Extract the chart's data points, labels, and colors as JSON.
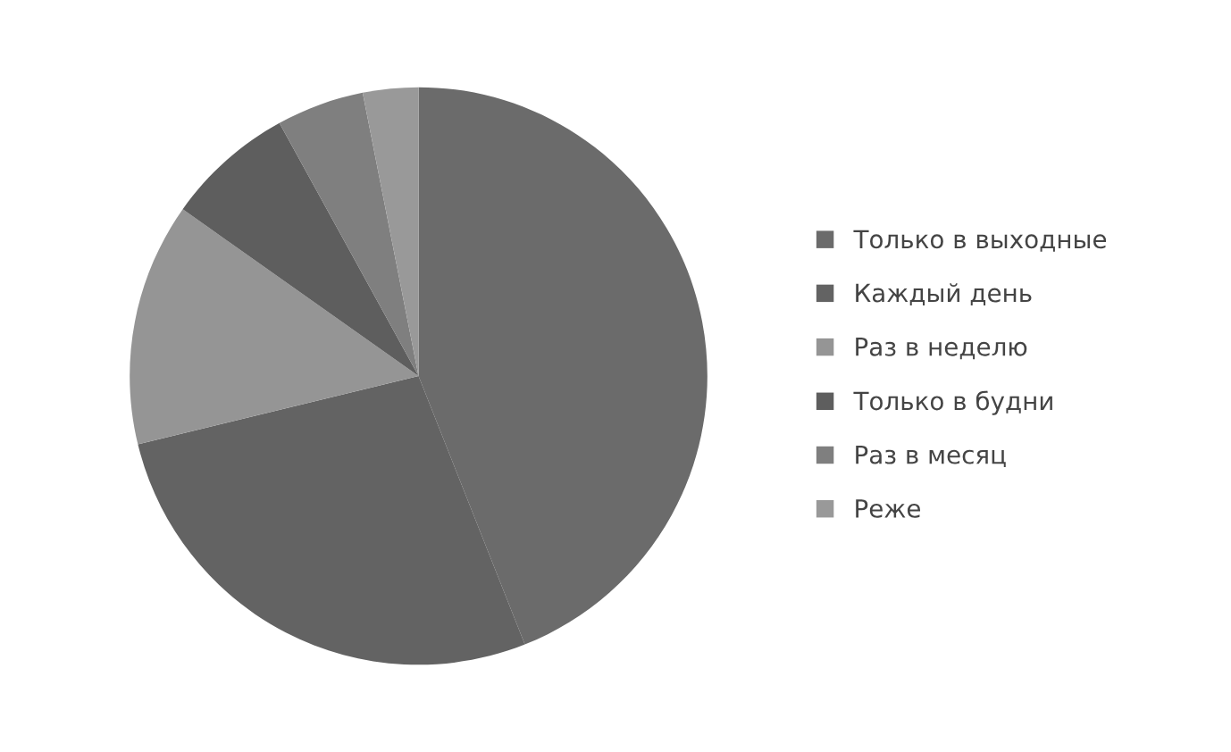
{
  "chart_data": {
    "type": "pie",
    "categories": [
      "Только в выходные",
      "Каждый день",
      "Раз в неделю",
      "Только в будни",
      "Раз в месяц",
      "Реже"
    ],
    "values": [
      44.0,
      27.2,
      13.6,
      7.2,
      4.9,
      3.1
    ],
    "colors": [
      "#6b6b6b",
      "#636363",
      "#959595",
      "#5e5e5e",
      "#7f7f7f",
      "#999999"
    ],
    "legend": "right"
  }
}
